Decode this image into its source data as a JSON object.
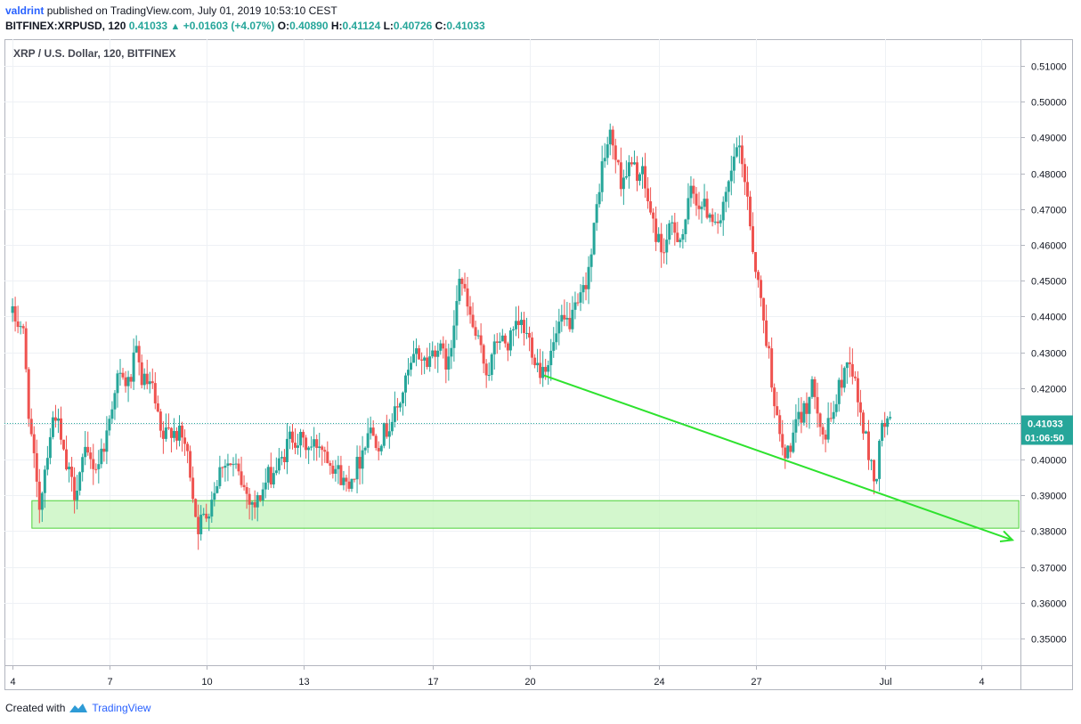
{
  "header": {
    "author": "valdrint",
    "published_text": "published on TradingView.com, July 01, 2019 10:53:10 CEST"
  },
  "quote": {
    "symbol_interval": "BITFINEX:XRPUSD, 120",
    "last": "0.41033",
    "arrow": "▲",
    "change": "+0.01603 (+4.07%)",
    "o_label": "O:",
    "o_value": "0.40890",
    "h_label": "H:",
    "h_value": "0.41124",
    "l_label": "L:",
    "l_value": "0.40726",
    "c_label": "C:",
    "c_value": "0.41033"
  },
  "footer": {
    "created_with": "Created with",
    "brand": "TradingView"
  },
  "colors": {
    "up": "#26a69a",
    "down": "#ef5350",
    "zone_fill": "#c8f5c0",
    "zone_stroke": "#4cd137",
    "trend": "#2ee22e",
    "grid": "#eef1f5",
    "last_price_line": "#26a69a"
  },
  "chart_data": {
    "type": "candlestick",
    "title": "XRP / U.S. Dollar, 120, BITFINEX",
    "ylim": [
      0.3425,
      0.5175
    ],
    "y_ticks": [
      "0.35000",
      "0.36000",
      "0.37000",
      "0.38000",
      "0.39000",
      "0.40000",
      "0.41000",
      "0.42000",
      "0.43000",
      "0.44000",
      "0.45000",
      "0.46000",
      "0.47000",
      "0.48000",
      "0.49000",
      "0.50000",
      "0.51000"
    ],
    "x_range_days": [
      3.75,
      35.2
    ],
    "x_ticks": [
      {
        "label": "4",
        "day": 4
      },
      {
        "label": "7",
        "day": 7
      },
      {
        "label": "10",
        "day": 10
      },
      {
        "label": "13",
        "day": 13
      },
      {
        "label": "17",
        "day": 17
      },
      {
        "label": "20",
        "day": 20
      },
      {
        "label": "24",
        "day": 24
      },
      {
        "label": "27",
        "day": 27
      },
      {
        "label": "Jul",
        "day": 31
      },
      {
        "label": "4",
        "day": 34
      }
    ],
    "last_price": "0.41033",
    "countdown": "01:06:50",
    "price_path": [
      [
        4.0,
        0.441
      ],
      [
        4.4,
        0.437
      ],
      [
        4.6,
        0.412
      ],
      [
        4.9,
        0.386
      ],
      [
        5.2,
        0.405
      ],
      [
        5.4,
        0.414
      ],
      [
        5.7,
        0.399
      ],
      [
        6.0,
        0.391
      ],
      [
        6.3,
        0.401
      ],
      [
        6.7,
        0.398
      ],
      [
        7.0,
        0.407
      ],
      [
        7.3,
        0.423
      ],
      [
        7.7,
        0.421
      ],
      [
        7.9,
        0.43
      ],
      [
        8.1,
        0.422
      ],
      [
        8.4,
        0.42
      ],
      [
        8.7,
        0.405
      ],
      [
        9.0,
        0.409
      ],
      [
        9.4,
        0.405
      ],
      [
        9.6,
        0.396
      ],
      [
        9.8,
        0.381
      ],
      [
        10.1,
        0.385
      ],
      [
        10.3,
        0.391
      ],
      [
        10.6,
        0.4
      ],
      [
        11.0,
        0.397
      ],
      [
        11.3,
        0.391
      ],
      [
        11.6,
        0.387
      ],
      [
        12.0,
        0.395
      ],
      [
        12.4,
        0.399
      ],
      [
        12.7,
        0.407
      ],
      [
        13.0,
        0.405
      ],
      [
        13.3,
        0.403
      ],
      [
        13.6,
        0.405
      ],
      [
        14.0,
        0.399
      ],
      [
        14.4,
        0.393
      ],
      [
        14.8,
        0.399
      ],
      [
        15.1,
        0.409
      ],
      [
        15.4,
        0.405
      ],
      [
        15.7,
        0.409
      ],
      [
        16.0,
        0.414
      ],
      [
        16.3,
        0.423
      ],
      [
        16.6,
        0.43
      ],
      [
        16.9,
        0.427
      ],
      [
        17.2,
        0.432
      ],
      [
        17.6,
        0.426
      ],
      [
        17.9,
        0.453
      ],
      [
        18.2,
        0.441
      ],
      [
        18.5,
        0.432
      ],
      [
        18.8,
        0.424
      ],
      [
        19.1,
        0.434
      ],
      [
        19.4,
        0.432
      ],
      [
        19.8,
        0.438
      ],
      [
        20.1,
        0.433
      ],
      [
        20.4,
        0.425
      ],
      [
        20.7,
        0.428
      ],
      [
        21.0,
        0.437
      ],
      [
        21.4,
        0.439
      ],
      [
        21.7,
        0.445
      ],
      [
        22.0,
        0.457
      ],
      [
        22.3,
        0.481
      ],
      [
        22.6,
        0.491
      ],
      [
        22.9,
        0.478
      ],
      [
        23.2,
        0.482
      ],
      [
        23.6,
        0.479
      ],
      [
        23.9,
        0.466
      ],
      [
        24.2,
        0.458
      ],
      [
        24.5,
        0.465
      ],
      [
        24.8,
        0.462
      ],
      [
        25.1,
        0.475
      ],
      [
        25.4,
        0.471
      ],
      [
        25.7,
        0.469
      ],
      [
        26.0,
        0.466
      ],
      [
        26.3,
        0.478
      ],
      [
        26.5,
        0.488
      ],
      [
        26.8,
        0.477
      ],
      [
        27.0,
        0.459
      ],
      [
        27.3,
        0.441
      ],
      [
        27.5,
        0.429
      ],
      [
        27.8,
        0.407
      ],
      [
        28.0,
        0.4
      ],
      [
        28.3,
        0.408
      ],
      [
        28.6,
        0.414
      ],
      [
        28.9,
        0.421
      ],
      [
        29.2,
        0.405
      ],
      [
        29.5,
        0.414
      ],
      [
        29.8,
        0.424
      ],
      [
        30.0,
        0.429
      ],
      [
        30.3,
        0.414
      ],
      [
        30.6,
        0.401
      ],
      [
        30.8,
        0.393
      ],
      [
        31.0,
        0.41
      ],
      [
        31.2,
        0.41
      ]
    ],
    "annotations": [
      {
        "type": "zone",
        "x_start_day": 4.6,
        "x_end_day": 35.15,
        "y_low": 0.3808,
        "y_high": 0.3885
      },
      {
        "type": "trend_arrow",
        "from": {
          "day": 20.45,
          "price": 0.4235
        },
        "to": {
          "day": 34.95,
          "price": 0.3775
        }
      }
    ]
  }
}
